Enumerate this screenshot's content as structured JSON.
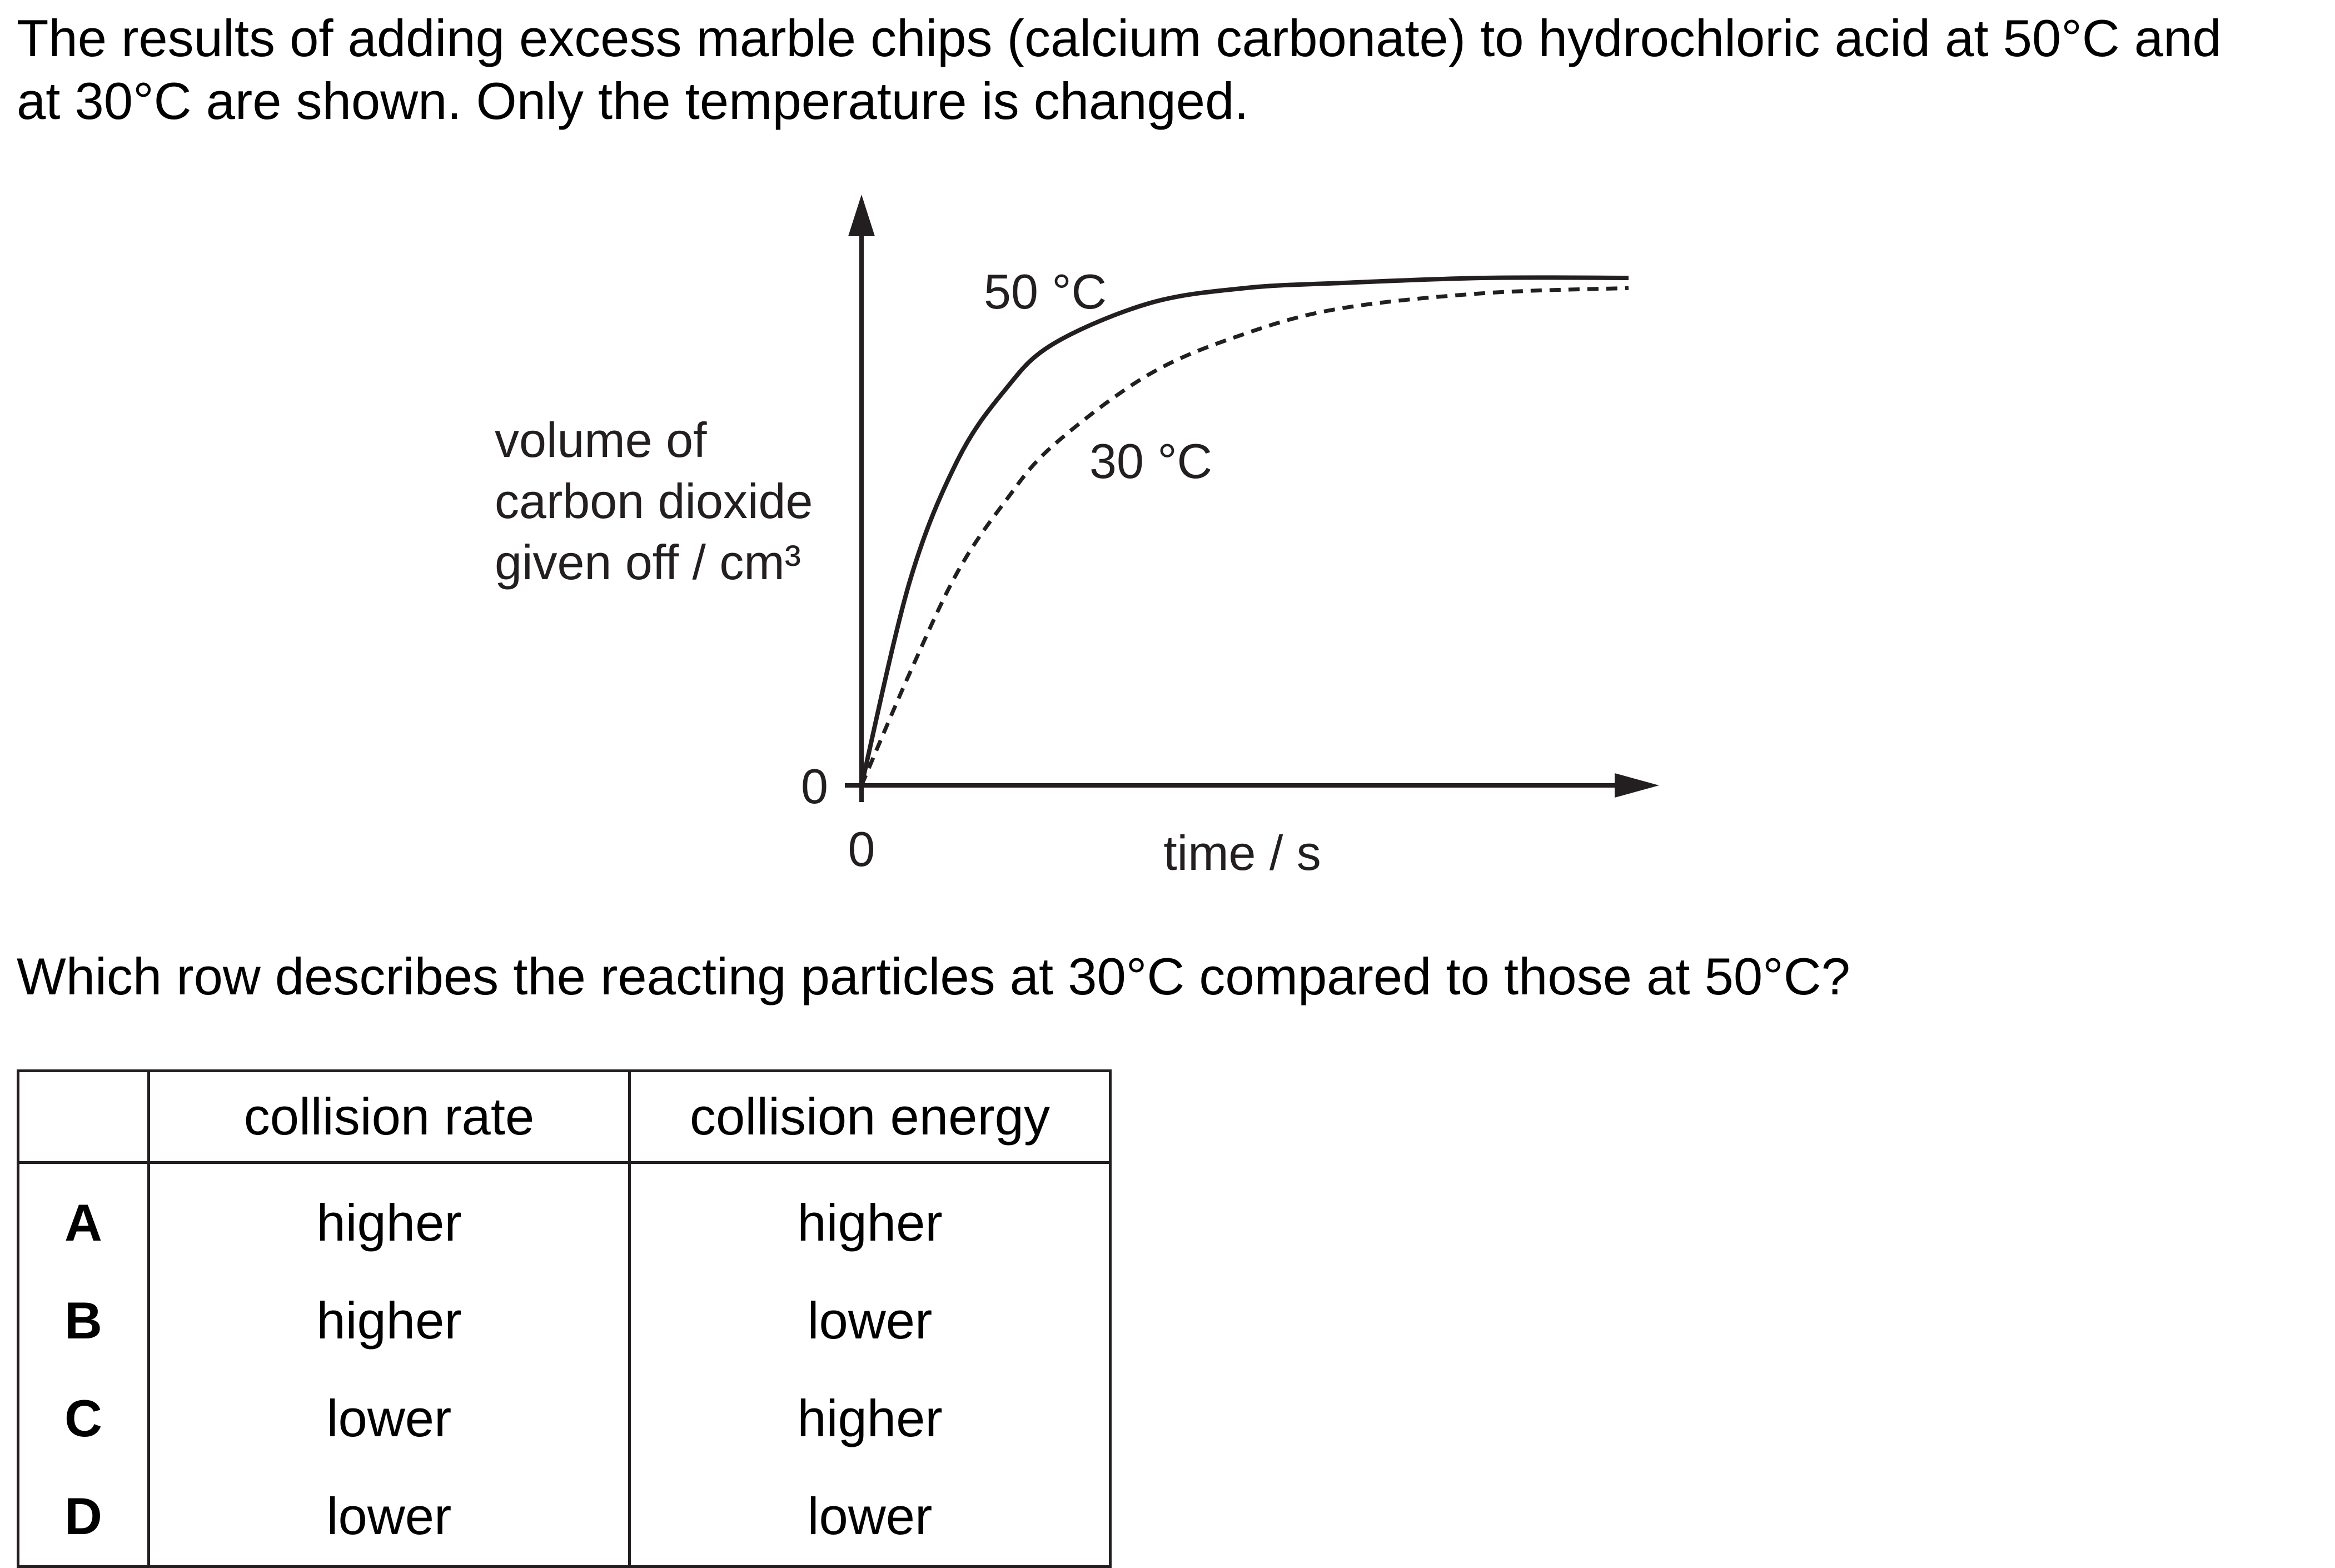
{
  "intro": {
    "line1": "The results of adding excess marble chips (calcium carbonate) to hydrochloric acid at 50°C and",
    "line2": "at 30°C are shown. Only the temperature is changed."
  },
  "chart_data": {
    "type": "line",
    "title": "",
    "ylabel_lines": [
      "volume of",
      "carbon dioxide",
      "given off / cm³"
    ],
    "xlabel": "time / s",
    "x_origin_label": "0",
    "y_origin_label": "0",
    "series": [
      {
        "name": "50 °C",
        "style": "solid",
        "points": [
          [
            0,
            0
          ],
          [
            5,
            0.4
          ],
          [
            10,
            0.64
          ],
          [
            15,
            0.78
          ],
          [
            20,
            0.87
          ],
          [
            30,
            0.95
          ],
          [
            40,
            0.98
          ],
          [
            50,
            0.99
          ],
          [
            65,
            1.0
          ],
          [
            80,
            1.0
          ]
        ]
      },
      {
        "name": "30 °C",
        "style": "dashed",
        "points": [
          [
            0,
            0
          ],
          [
            5,
            0.22
          ],
          [
            10,
            0.42
          ],
          [
            15,
            0.56
          ],
          [
            20,
            0.67
          ],
          [
            30,
            0.81
          ],
          [
            40,
            0.89
          ],
          [
            50,
            0.94
          ],
          [
            65,
            0.97
          ],
          [
            80,
            0.98
          ]
        ]
      }
    ],
    "grid": false,
    "legend": "labels on curves",
    "colors": {
      "line": "#231f20"
    }
  },
  "question": "Which row describes the reacting particles at 30°C compared to those at 50°C?",
  "table": {
    "headers": [
      "",
      "collision rate",
      "collision energy"
    ],
    "rows": [
      {
        "key": "A",
        "rate": "higher",
        "energy": "higher"
      },
      {
        "key": "B",
        "rate": "higher",
        "energy": "lower"
      },
      {
        "key": "C",
        "rate": "lower",
        "energy": "higher"
      },
      {
        "key": "D",
        "rate": "lower",
        "energy": "lower"
      }
    ]
  }
}
